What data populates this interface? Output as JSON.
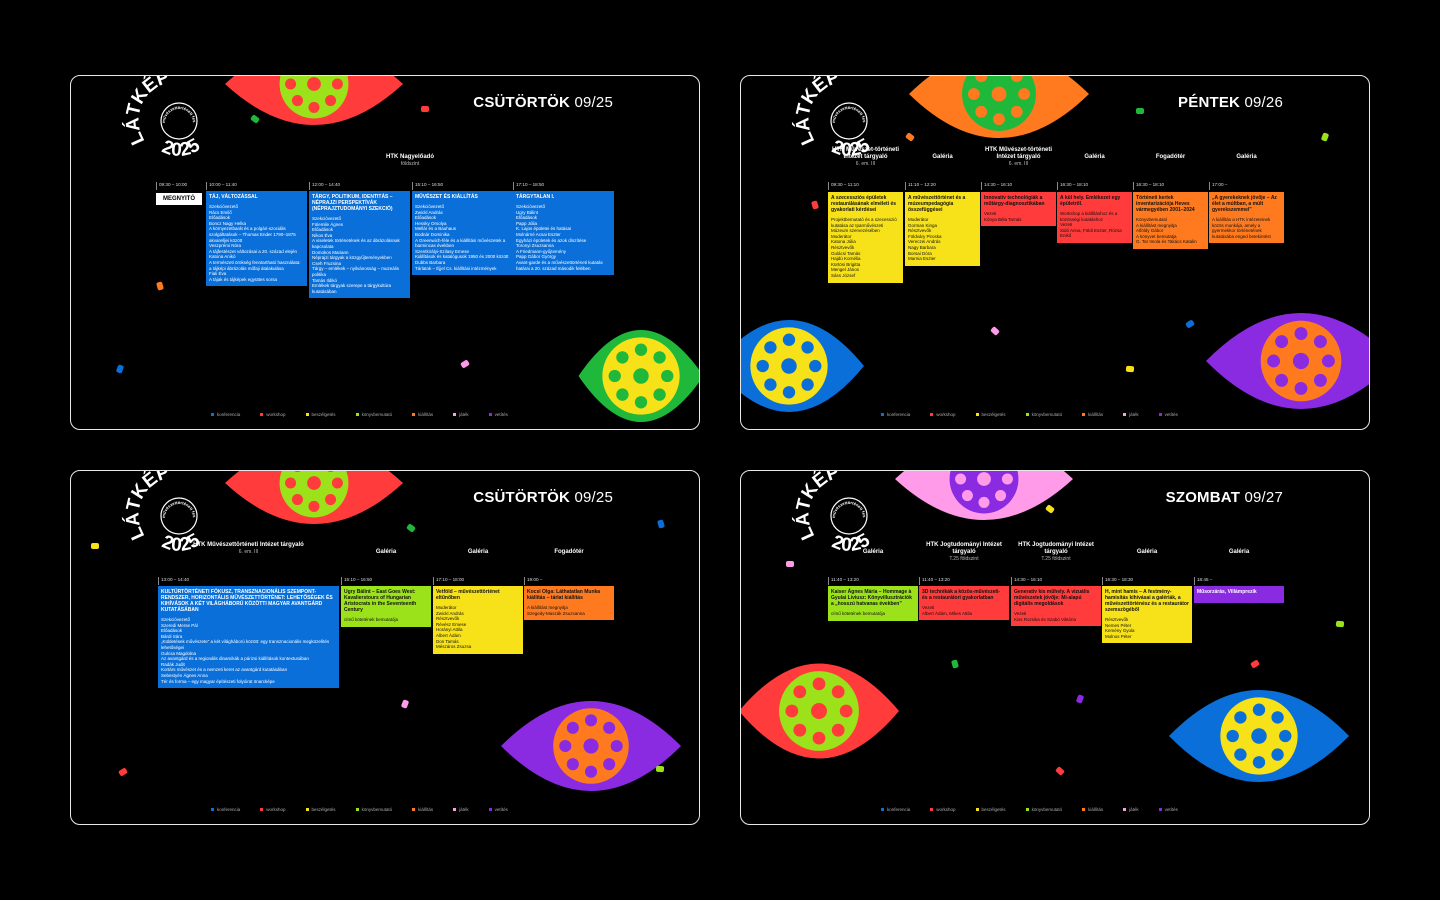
{
  "logo": {
    "name": "LÁTKÉP",
    "year": "2025",
    "tagline": "művészettörténeti fesztivál"
  },
  "legend": [
    "konferencia",
    "workshop",
    "beszélgetés",
    "könyvbemutató",
    "kiállítás",
    "játék",
    "vetítés"
  ],
  "legend_colors": [
    "#0a6fd8",
    "#ff3b3b",
    "#f7e21a",
    "#9be21a",
    "#ff7a1f",
    "#ff9be8",
    "#8a2be2"
  ],
  "panels": [
    {
      "day": "CSÜTÖRTÖK",
      "date": "09/25",
      "venue": "HTK Nagyelőadó",
      "venue_note": "földszint",
      "columns": [
        {
          "time": "09:30 – 10:00",
          "label": "MEGNYITÓ"
        },
        {
          "time": "10:00 – 11:40",
          "event": {
            "color": "#0a6fd8",
            "title": "TÁJ, VÁLTOZÁSSAL",
            "lines": [
              "Szekcióvezető",
              "Rács Emilő",
              "Előadások",
              "Boncz Nagy Helka",
              "A környezetbarát és a polgári-szociális szolgáltatások – Thomas Ender 1790–1875 akvarelljei között",
              "Veszprémi Nóra",
              "A tájfestészet változásai a 20. század elején",
              "Katona Anikó",
              "A természeti örökség fenntartható használata: a tájképi ábrázolás műfaji átalakulása",
              "Fiali Éva",
              "A tájak és tájképek együttes sorsa"
            ]
          }
        },
        {
          "time": "12:00 – 14:40",
          "event": {
            "color": "#0a6fd8",
            "title": "TÁRGY, POLITIKUM, IDENTITÁS – NÉPRAJZI PERSPEKTÍVÁK (NÉPRAJZTUDOMÁNYI SZEKCIÓ)",
            "lines": [
              "Szekcióvezető",
              "Fülemile Ágnes",
              "Előadások",
              "Nikos Éva",
              "A viseletek történetének és az ábrázolásnak kapcsolata",
              "Domokos Mariann",
              "Néprajzi tárgyak a közgyűjteményekben",
              "Cseh Fruzsina",
              "Tárgy – emlékek – nyilvánosság – muzeális politika",
              "Tamás Ildikó",
              "Emlékek tárgyak szerepe a tárgykultúra kutatásában"
            ]
          }
        },
        {
          "time": "15:10 – 16:50",
          "event": {
            "color": "#0a6fd8",
            "title": "MŰVÉSZET ÉS KIÁLLÍTÁS",
            "lines": [
              "Szekcióvezető",
              "Zwickl András",
              "Előadások",
              "Hessky Orsolya",
              "Mellár és a Bauhaus",
              "Bodnár Dominika",
              "A Greenwich-féle és a kiállítási művészetek a harmincas években",
              "Szentkirályi-Szilasy Emese",
              "Kiállítások és katalógusok 1950 és 2000 között",
              "Dubbs Barbara",
              "Tárlatok – Éjjel Cs. kiállítási intézmények"
            ]
          }
        },
        {
          "time": "17:10 – 18:50",
          "event": {
            "color": "#0a6fd8",
            "title": "TÁRGYTALAN I.",
            "lines": [
              "Szekcióvezető",
              "Ugry Bálint",
              "Előadások",
              "Papp Júlia",
              "K. Lajos épületei és hatásai",
              "Molnárné Acsai Eszter",
              "Egyházi épületek és azok díszítése",
              "Toronyi Zsuzsanna",
              "A Friedmann-gyűjtemény",
              "Papp Gábor György",
              "Avant-garde és a művészettörténeti kutatás határai a 20. század második felében"
            ]
          }
        }
      ]
    },
    {
      "day": "PÉNTEK",
      "date": "09/26",
      "columns": [
        {
          "venue": "HTK Művészet-történeti Intézet tárgyaló",
          "venue_note": "6. em. III",
          "time": "09:30 – 11:10",
          "event": {
            "color": "#f7e21a",
            "title": "A szecessziós épületek restaurálásának elméleti és gyakorlati kérdései",
            "lines": [
              "Projektbemutató és a szecesszió kutatása az Iparművészeti Múzeum szervezésében",
              "Moderátor",
              "Katona Júlia",
              "Résztvevők",
              "Gulácsi Tamás",
              "Hajdú Kornélia",
              "Kürtösi Brigitta",
              "Mengel János",
              "Sáss József"
            ]
          }
        },
        {
          "venue": "Galéria",
          "time": "11:10 – 12:20",
          "event": {
            "color": "#f7e21a",
            "title": "A művészettörténet és a múzeumpedagógia összefüggései",
            "lines": [
              "Moderátor",
              "Gorman Kinga",
              "Résztvevők",
              "Földváry Piroska",
              "Vereczei András",
              "Nagy Barbara",
              "Borsai Dóra",
              "Marnia Eszter"
            ]
          }
        },
        {
          "venue": "HTK Művészet-történeti Intézet tárgyaló",
          "venue_note": "6. em. III",
          "time": "14:30 – 16:10",
          "event": {
            "color": "#ff3b3b",
            "title": "Innovatív technológiák a műtárgy-diagnosztikában",
            "lines": [
              "Vezeti",
              "Kónya Béla Tamás"
            ]
          }
        },
        {
          "venue": "Galéria",
          "time": "16:30 – 18:10",
          "event": {
            "color": "#ff3b3b",
            "title": "A kül hely. Emlékezet egy épületről.",
            "lines": [
              "Workshop a kiállításhoz és a közösségi kutatáshoz",
              "Vezeti",
              "Sidó Anna, Földi Eszter, Rózsa Enikő"
            ]
          }
        },
        {
          "venue": "Fogadótér",
          "time": "16:30 – 18:10",
          "event": {
            "color": "#ff7a1f",
            "title": "Történeti kertek inventarizációja Heves vármegyében 2001–2024",
            "lines": [
              "Könyvbemutató",
              "A kiállítást megnyitja",
              "Alföldy Gábor",
              "A könyvet bemutatja",
              "G. Tar Imola és Takács Katalin"
            ]
          }
        },
        {
          "venue": "Galéria",
          "time": "17:00 –",
          "event": {
            "color": "#ff7a1f",
            "title": "„A gyerekeknek jövője – Az élet a múltban, a múlt gyerekszemmel”",
            "lines": [
              "A kiállítás a HTK intézeteinek közös munkája, amely a gyermekkor történetének kutatásába enged betekintést"
            ]
          }
        }
      ]
    },
    {
      "day": "CSÜTÖRTÖK",
      "date": "09/25",
      "columns": [
        {
          "venue": "HTK Művészettörténeti Intézet tárgyaló",
          "venue_note": "6. em. III",
          "time": "13:00 – 14:40",
          "event": {
            "color": "#0a6fd8",
            "title": "KULTÚRTÖRTÉNETI FÓKUSZ, TRANSZNACIONÁLIS SZEMPONT-RENDSZER, HORIZONTÁLIS MŰVÉSZETTÖRTÉNET: LEHETŐSÉGEK ÉS KIHÍVÁSOK A KÉT VILÁGHÁBORÚ KÖZÖTTI MAGYAR AVANTGÁRD KUTATÁSÁBAN",
            "lines": [
              "Szekcióvezető",
              "Szeredi Merse Pál",
              "Előadások",
              "Bárdi Sára",
              "„Küldetések művészete” a két világháború között: egy transznacionális megközelítés lehetőségei",
              "Gulcsa Magdolna",
              "Az avantgárd és a regionális dinamikák a párizsi kiállítások kontextusában",
              "Radák Judit",
              "Kortárs művészet és a nemzeti keret az avantgárd kutatásában",
              "Sebestyén Ágnes Anna",
              "Tér és forma – egy magyar építészeti folyóirat önarcképe"
            ]
          }
        },
        {
          "venue": "Galéria",
          "time": "15:10 – 16:50",
          "event": {
            "color": "#9be21a",
            "title": "Ugry Bálint – East Goes West: Kavalierstours of Hungarian Aristocrats in the Seventeenth Century",
            "lines": [
              "című kötetének bemutatója"
            ]
          }
        },
        {
          "venue": "Galéria",
          "time": "17:10 – 18:00",
          "event": {
            "color": "#f7e21a",
            "title": "Vetföld – művészettörténet eltűnőben",
            "lines": [
              "Moderátor",
              "Zwickl András",
              "Résztvevők",
              "Révész Emese",
              "Horányi Attila",
              "Albert Ádám",
              "Don Tamás",
              "Mészáros Zsuzsa"
            ]
          }
        },
        {
          "venue": "Fogadótér",
          "time": "19:00 –",
          "event": {
            "color": "#ff7a1f",
            "title": "Kocsi Olga: Láthatatlan Munka kiállítás – tárlat kiállítás",
            "lines": [
              "A kiállítást megnyitja",
              "Szegedy-Maszák Zsuzsanna"
            ]
          }
        }
      ]
    },
    {
      "day": "SZOMBAT",
      "date": "09/27",
      "columns": [
        {
          "venue": "Galéria",
          "time": "11:40 – 13:20",
          "event": {
            "color": "#9be21a",
            "title": "Kaiser Ágnes Mária – Hommage à Gyulai Líviusz: Könyvillusztrációk a „hosszú hatvanas években”",
            "lines": [
              "című kötetének bemutatója"
            ]
          }
        },
        {
          "venue": "HTK Jogtudományi Intézet tárgyaló",
          "venue_note": "T.25 földszint",
          "time": "11:40 – 13:20",
          "event": {
            "color": "#ff3b3b",
            "title": "3D technikák a közös-művészeti- és a restaurátori gyakorlatban",
            "lines": [
              "Vezeti",
              "Albert Ádám, Mikes Attila"
            ]
          }
        },
        {
          "venue": "HTK Jogtudományi Intézet tárgyaló",
          "venue_note": "T.25 földszint",
          "time": "14:30 – 16:10",
          "event": {
            "color": "#ff3b3b",
            "title": "Generatív kis műhely. A vizuális művészetek jövője: Mi-alapú digitális megoldások",
            "lines": [
              "Vezeti",
              "Kiss Rozsika és Szabó Viktória"
            ]
          }
        },
        {
          "venue": "Galéria",
          "time": "16:30 – 18:30",
          "event": {
            "color": "#f7e21a",
            "title": "H, mint hamis – A festmény-hamisítás kihívásai a galériák, a művészettörténész és a restaurátor szemszögéből",
            "lines": [
              "Résztvevők",
              "Nemes Péter",
              "Kemény Gyula",
              "Molnos Péter"
            ]
          }
        },
        {
          "venue": "Galéria",
          "time": "18:45 –",
          "event": {
            "color": "#8a2be2",
            "title": "Műsorzárás, Villámprezik",
            "lines": []
          }
        }
      ]
    }
  ]
}
